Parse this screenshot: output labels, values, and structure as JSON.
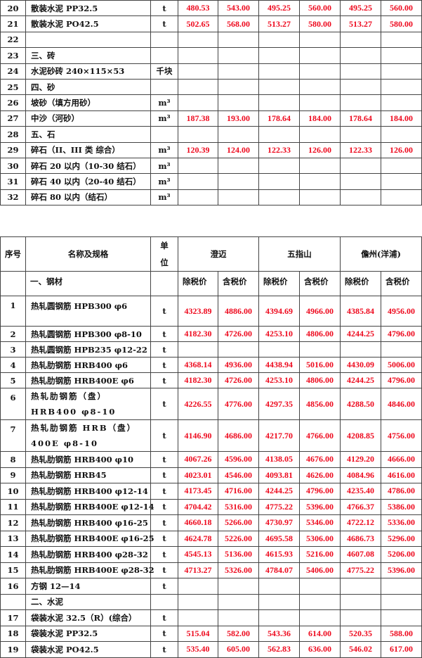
{
  "table_top": {
    "rows": [
      {
        "no": "20",
        "name": "散装水泥 PP32.5",
        "unit": "t",
        "prices": [
          "480.53",
          "543.00",
          "495.25",
          "560.00",
          "495.25",
          "560.00"
        ]
      },
      {
        "no": "21",
        "name": "散装水泥 PO42.5",
        "unit": "t",
        "prices": [
          "502.65",
          "568.00",
          "513.27",
          "580.00",
          "513.27",
          "580.00"
        ]
      },
      {
        "no": "22",
        "name": "",
        "unit": "",
        "prices": [
          "",
          "",
          "",
          "",
          "",
          ""
        ]
      },
      {
        "no": "23",
        "name": "三、砖",
        "unit": "",
        "prices": [
          "",
          "",
          "",
          "",
          "",
          ""
        ]
      },
      {
        "no": "24",
        "name": "水泥砂砖  240×115×53",
        "unit": "千块",
        "prices": [
          "",
          "",
          "",
          "",
          "",
          ""
        ]
      },
      {
        "no": "25",
        "name": "四、砂",
        "unit": "",
        "prices": [
          "",
          "",
          "",
          "",
          "",
          ""
        ]
      },
      {
        "no": "26",
        "name": "坡砂（填方用砂）",
        "unit": "m³",
        "prices": [
          "",
          "",
          "",
          "",
          "",
          ""
        ]
      },
      {
        "no": "27",
        "name": "中沙（河砂）",
        "unit": "m³",
        "prices": [
          "187.38",
          "193.00",
          "178.64",
          "184.00",
          "178.64",
          "184.00"
        ]
      },
      {
        "no": "28",
        "name": "五、石",
        "unit": "",
        "prices": [
          "",
          "",
          "",
          "",
          "",
          ""
        ]
      },
      {
        "no": "29",
        "name": "碎石（II、III 类  综合）",
        "unit": "m³",
        "prices": [
          "120.39",
          "124.00",
          "122.33",
          "126.00",
          "122.33",
          "126.00"
        ]
      },
      {
        "no": "30",
        "name": "碎石 20 以内（10-30 结石）",
        "unit": "m³",
        "prices": [
          "",
          "",
          "",
          "",
          "",
          ""
        ]
      },
      {
        "no": "31",
        "name": "碎石 40 以内（20-40 结石）",
        "unit": "m³",
        "prices": [
          "",
          "",
          "",
          "",
          "",
          ""
        ]
      },
      {
        "no": "32",
        "name": "碎石 80 以内（结石）",
        "unit": "m³",
        "prices": [
          "",
          "",
          "",
          "",
          "",
          ""
        ]
      }
    ]
  },
  "table_main": {
    "header": {
      "no": "序号",
      "name": "名称及规格",
      "unit": "单位",
      "regions": [
        "澄迈",
        "五指山",
        "儋州(洋浦)"
      ],
      "ex_tax": "除税价",
      "inc_tax": "含税价",
      "section": "一、钢材"
    },
    "rows": [
      {
        "no": "1",
        "name": "热轧圆钢筋 HPB300 φ6",
        "unit": "t",
        "prices": [
          "4323.89",
          "4886.00",
          "4394.69",
          "4966.00",
          "4385.84",
          "4956.00"
        ]
      },
      {
        "no": "2",
        "name": "热轧圆钢筋 HPB300 φ8-10",
        "unit": "t",
        "prices": [
          "4182.30",
          "4726.00",
          "4253.10",
          "4806.00",
          "4244.25",
          "4796.00"
        ]
      },
      {
        "no": "3",
        "name": "热轧圆钢筋 HPB235 φ12-22",
        "unit": "t",
        "prices": [
          "",
          "",
          "",
          "",
          "",
          ""
        ]
      },
      {
        "no": "4",
        "name": "热轧肋钢筋 HRB400 φ6",
        "unit": "t",
        "prices": [
          "4368.14",
          "4936.00",
          "4438.94",
          "5016.00",
          "4430.09",
          "5006.00"
        ]
      },
      {
        "no": "5",
        "name": "热轧肋钢筋 HRB400E φ6",
        "unit": "t",
        "prices": [
          "4182.30",
          "4726.00",
          "4253.10",
          "4806.00",
          "4244.25",
          "4796.00"
        ]
      },
      {
        "no": "6",
        "name": "热轧肋钢筋（盘）HRB400 φ8-10",
        "unit": "t",
        "prices": [
          "4226.55",
          "4776.00",
          "4297.35",
          "4856.00",
          "4288.50",
          "4846.00"
        ]
      },
      {
        "no": "7",
        "name": "热轧肋钢筋 HRB（盘）400E φ8-10",
        "unit": "t",
        "prices": [
          "4146.90",
          "4686.00",
          "4217.70",
          "4766.00",
          "4208.85",
          "4756.00"
        ]
      },
      {
        "no": "8",
        "name": "热轧肋钢筋 HRB400 φ10",
        "unit": "t",
        "prices": [
          "4067.26",
          "4596.00",
          "4138.05",
          "4676.00",
          "4129.20",
          "4666.00"
        ]
      },
      {
        "no": "9",
        "name": "热轧肋钢筋 HRB45",
        "unit": "t",
        "prices": [
          "4023.01",
          "4546.00",
          "4093.81",
          "4626.00",
          "4084.96",
          "4616.00"
        ]
      },
      {
        "no": "10",
        "name": "热轧肋钢筋 HRB400 φ12-14",
        "unit": "t",
        "prices": [
          "4173.45",
          "4716.00",
          "4244.25",
          "4796.00",
          "4235.40",
          "4786.00"
        ]
      },
      {
        "no": "11",
        "name": "热轧肋钢筋 HRB400E φ12-14",
        "unit": "t",
        "prices": [
          "4704.42",
          "5316.00",
          "4775.22",
          "5396.00",
          "4766.37",
          "5386.00"
        ]
      },
      {
        "no": "12",
        "name": "热轧肋钢筋 HRB400 φ16-25",
        "unit": "t",
        "prices": [
          "4660.18",
          "5266.00",
          "4730.97",
          "5346.00",
          "4722.12",
          "5336.00"
        ]
      },
      {
        "no": "13",
        "name": "热轧肋钢筋 HRB400E φ16-25",
        "unit": "t",
        "prices": [
          "4624.78",
          "5226.00",
          "4695.58",
          "5306.00",
          "4686.73",
          "5296.00"
        ]
      },
      {
        "no": "14",
        "name": "热轧肋钢筋 HRB400 φ28-32",
        "unit": "t",
        "prices": [
          "4545.13",
          "5136.00",
          "4615.93",
          "5216.00",
          "4607.08",
          "5206.00"
        ]
      },
      {
        "no": "15",
        "name": "热轧肋钢筋 HRB400E φ28-32",
        "unit": "t",
        "prices": [
          "4713.27",
          "5326.00",
          "4784.07",
          "5406.00",
          "4775.22",
          "5396.00"
        ]
      },
      {
        "no": "16",
        "name": "方钢 12—14",
        "unit": "t",
        "prices": [
          "",
          "",
          "",
          "",
          "",
          ""
        ]
      },
      {
        "no": "",
        "name": "二、水泥",
        "unit": "",
        "prices": [
          "",
          "",
          "",
          "",
          "",
          ""
        ]
      },
      {
        "no": "17",
        "name": "袋装水泥 32.5（R）(综合）",
        "unit": "t",
        "prices": [
          "",
          "",
          "",
          "",
          "",
          ""
        ]
      },
      {
        "no": "18",
        "name": "袋装水泥 PP32.5",
        "unit": "t",
        "prices": [
          "515.04",
          "582.00",
          "543.36",
          "614.00",
          "520.35",
          "588.00"
        ]
      },
      {
        "no": "19",
        "name": "袋装水泥 PO42.5",
        "unit": "t",
        "prices": [
          "535.40",
          "605.00",
          "562.83",
          "636.00",
          "546.02",
          "617.00"
        ]
      }
    ]
  },
  "colors": {
    "price": "#ee0a1e",
    "text": "#111111",
    "border": "#444444"
  }
}
